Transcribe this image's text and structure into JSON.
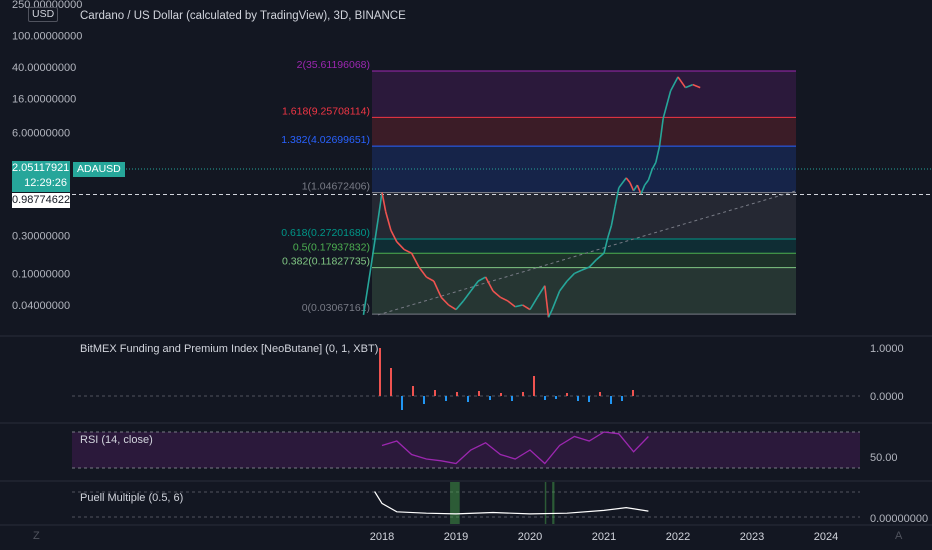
{
  "header": {
    "title": "Cardano / US Dollar (calculated by TradingView), 3D, BINANCE",
    "currency": "USD"
  },
  "price_axis": {
    "labels": [
      "250.00000000",
      "100.00000000",
      "40.00000000",
      "16.00000000",
      "6.00000000",
      "0.30000000",
      "0.10000000",
      "0.04000000"
    ],
    "current_price": "2.05117921",
    "countdown": "12:29:26",
    "symbol": "ADAUSD",
    "line_price": "0.98774622"
  },
  "colors": {
    "background": "#131722",
    "up": "#26a69a",
    "down": "#ef5350",
    "fib_0": "#787b86",
    "fib_0382": "#81c784",
    "fib_05": "#4caf50",
    "fib_0618": "#009688",
    "fib_1": "#787b86",
    "fib_1382": "#2962ff",
    "fib_1618": "#f23645",
    "fib_2": "#9c27b0",
    "rsi_line": "#9c27b0",
    "funding_up": "#2196f3",
    "funding_down": "#ef5350",
    "puell_line": "#ffffff",
    "puell_band": "#4caf50"
  },
  "panes": {
    "funding": {
      "title": "BitMEX Funding and Premium Index [NeoButane] (0, 1, XBT)",
      "labels": [
        "1.0000",
        "0.0000"
      ]
    },
    "rsi": {
      "title": "RSI (14, close)",
      "labels": [
        "50.00"
      ]
    },
    "puell": {
      "title": "Puell Multiple (0.5, 6)",
      "labels": [
        "0.00000000"
      ]
    }
  },
  "time_axis": {
    "labels": [
      "2018",
      "2019",
      "2020",
      "2021",
      "2022",
      "2023",
      "2024"
    ],
    "left_icon": "Z",
    "right_icon": "A"
  },
  "chart_data": [
    {
      "type": "line",
      "title": "Cardano / US Dollar (calculated by TradingView), 3D, BINANCE",
      "scale": "log",
      "x_ticks": [
        "2018",
        "2019",
        "2020",
        "2021",
        "2022",
        "2023",
        "2024"
      ],
      "y_ticks": [
        250,
        100,
        40,
        16,
        6,
        0.3,
        0.1,
        0.04
      ],
      "ylim": [
        0.02,
        250
      ],
      "series": [
        {
          "x": [
            2017.75,
            2017.85,
            2017.95,
            2018.0,
            2018.05,
            2018.12,
            2018.2,
            2018.3,
            2018.4,
            2018.5,
            2018.6,
            2018.7,
            2018.8,
            2018.9,
            2019.0,
            2019.1,
            2019.2,
            2019.3,
            2019.4,
            2019.5,
            2019.6,
            2019.7,
            2019.8,
            2019.9,
            2020.0,
            2020.1,
            2020.2,
            2020.25,
            2020.3,
            2020.4,
            2020.5,
            2020.6,
            2020.7,
            2020.8,
            2020.9,
            2021.0,
            2021.05,
            2021.1,
            2021.15,
            2021.2,
            2021.3,
            2021.35,
            2021.4,
            2021.45,
            2021.5,
            2021.55,
            2021.6,
            2021.65,
            2021.7,
            2021.75,
            2021.8,
            2021.9,
            2022.0,
            2022.1,
            2022.2,
            2022.3
          ],
          "values": [
            0.03,
            0.12,
            0.5,
            1.05,
            0.6,
            0.35,
            0.25,
            0.2,
            0.18,
            0.12,
            0.09,
            0.08,
            0.05,
            0.04,
            0.035,
            0.045,
            0.06,
            0.08,
            0.09,
            0.06,
            0.05,
            0.045,
            0.038,
            0.04,
            0.035,
            0.05,
            0.07,
            0.028,
            0.035,
            0.06,
            0.08,
            0.1,
            0.11,
            0.12,
            0.15,
            0.18,
            0.28,
            0.4,
            0.7,
            1.2,
            1.6,
            1.4,
            1.1,
            1.3,
            1.0,
            1.3,
            1.5,
            2.05,
            2.5,
            4.0,
            9.0,
            20.0,
            30.0,
            22.0,
            24.0,
            22.0
          ]
        }
      ],
      "fib_levels": [
        {
          "ratio": "0",
          "price": 0.03067161,
          "label": "0(0.03067161)"
        },
        {
          "ratio": "0.382",
          "price": 0.11827735,
          "label": "0.382(0.11827735)"
        },
        {
          "ratio": "0.5",
          "price": 0.17937832,
          "label": "0.5(0.17937832)"
        },
        {
          "ratio": "0.618",
          "price": 0.2720168,
          "label": "0.618(0.27201680)"
        },
        {
          "ratio": "1",
          "price": 1.04672406,
          "label": "1(1.04672406)"
        },
        {
          "ratio": "1.382",
          "price": 4.02699651,
          "label": "1.382(4.02699651)"
        },
        {
          "ratio": "1.618",
          "price": 9.25708114,
          "label": "1.618(9.25708114)"
        },
        {
          "ratio": "2",
          "price": 35.61196068,
          "label": "2(35.61196068)"
        }
      ]
    },
    {
      "type": "line",
      "title": "RSI (14, close)",
      "x": [
        2018.0,
        2018.2,
        2018.4,
        2018.6,
        2018.8,
        2019.0,
        2019.2,
        2019.4,
        2019.6,
        2019.8,
        2020.0,
        2020.2,
        2020.4,
        2020.6,
        2020.8,
        2021.0,
        2021.2,
        2021.4,
        2021.6
      ],
      "values": [
        55,
        60,
        45,
        40,
        38,
        35,
        50,
        58,
        45,
        40,
        50,
        35,
        55,
        65,
        60,
        70,
        68,
        48,
        65
      ],
      "y_ticks": [
        50
      ]
    },
    {
      "type": "line",
      "title": "Puell Multiple (0.5, 6)",
      "x": [
        2017.9,
        2018.0,
        2018.2,
        2018.6,
        2019.0,
        2019.5,
        2020.0,
        2020.5,
        2021.0,
        2021.3,
        2021.6
      ],
      "values": [
        3.5,
        1.8,
        0.6,
        0.4,
        0.3,
        0.5,
        0.3,
        0.4,
        0.8,
        1.2,
        0.7
      ],
      "y_ticks": [
        0
      ]
    }
  ]
}
